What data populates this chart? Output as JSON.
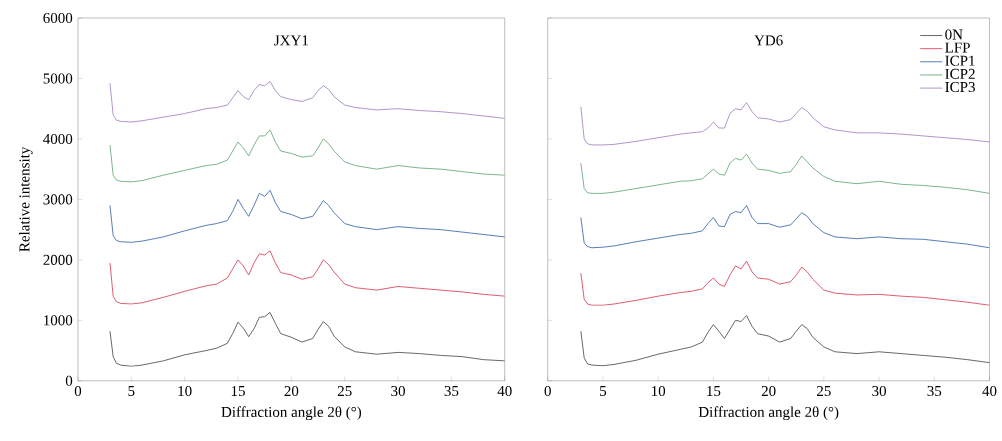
{
  "chart_data": [
    {
      "type": "line",
      "title": "JXY1",
      "xlabel": "Diffraction angle 2θ (°)",
      "ylabel": "Relative intensity",
      "x": [
        3,
        3.3,
        3.6,
        4,
        5,
        6,
        8,
        10,
        12,
        13,
        14,
        14.5,
        15,
        15.5,
        16,
        16.5,
        17,
        17.5,
        18,
        18.5,
        19,
        20,
        21,
        22,
        22.5,
        23,
        23.5,
        24,
        25,
        26,
        28,
        30,
        32,
        34,
        36,
        38,
        40
      ],
      "xlim": [
        0,
        40
      ],
      "xticks": [
        0,
        5,
        10,
        15,
        20,
        25,
        30,
        35,
        40
      ],
      "ylim": [
        0,
        6000
      ],
      "yticks": [
        0,
        1000,
        2000,
        3000,
        4000,
        5000,
        6000
      ],
      "legend": false,
      "series": [
        {
          "color": "#404040",
          "values": [
            820,
            400,
            290,
            260,
            240,
            260,
            330,
            430,
            500,
            540,
            620,
            780,
            970,
            870,
            730,
            860,
            1050,
            1060,
            1130,
            950,
            780,
            720,
            640,
            700,
            850,
            980,
            900,
            740,
            560,
            480,
            440,
            470,
            450,
            420,
            400,
            350,
            330
          ]
        },
        {
          "color": "#d6334a",
          "values": [
            1950,
            1400,
            1310,
            1280,
            1270,
            1290,
            1380,
            1480,
            1570,
            1600,
            1700,
            1850,
            2000,
            1900,
            1750,
            1950,
            2100,
            2080,
            2150,
            1950,
            1790,
            1750,
            1680,
            1720,
            1850,
            2000,
            1920,
            1800,
            1600,
            1540,
            1500,
            1560,
            1530,
            1500,
            1470,
            1430,
            1400
          ]
        },
        {
          "color": "#2e5ca8",
          "values": [
            2900,
            2400,
            2320,
            2300,
            2290,
            2310,
            2380,
            2480,
            2570,
            2600,
            2650,
            2800,
            3000,
            2850,
            2720,
            2900,
            3100,
            3050,
            3150,
            2950,
            2800,
            2750,
            2680,
            2720,
            2850,
            2980,
            2900,
            2780,
            2600,
            2550,
            2500,
            2550,
            2520,
            2500,
            2460,
            2420,
            2380
          ]
        },
        {
          "color": "#5aa36e",
          "values": [
            3900,
            3400,
            3320,
            3300,
            3290,
            3310,
            3400,
            3480,
            3560,
            3580,
            3650,
            3800,
            3950,
            3850,
            3720,
            3900,
            4050,
            4050,
            4150,
            3950,
            3800,
            3760,
            3700,
            3720,
            3850,
            4000,
            3920,
            3800,
            3620,
            3560,
            3500,
            3560,
            3520,
            3500,
            3460,
            3420,
            3400
          ]
        },
        {
          "color": "#9b7bbf",
          "values": [
            4920,
            4400,
            4310,
            4290,
            4280,
            4300,
            4360,
            4420,
            4500,
            4520,
            4560,
            4680,
            4800,
            4700,
            4650,
            4800,
            4900,
            4880,
            4950,
            4800,
            4700,
            4650,
            4620,
            4680,
            4800,
            4880,
            4820,
            4700,
            4560,
            4520,
            4480,
            4500,
            4470,
            4450,
            4420,
            4380,
            4340
          ]
        }
      ]
    },
    {
      "type": "line",
      "title": "YD6",
      "xlabel": "Diffraction angle 2θ (°)",
      "x": [
        3,
        3.3,
        3.6,
        4,
        5,
        6,
        8,
        10,
        12,
        13,
        14,
        14.5,
        15,
        15.5,
        16,
        16.5,
        17,
        17.5,
        18,
        18.5,
        19,
        20,
        21,
        22,
        22.5,
        23,
        23.5,
        24,
        25,
        26,
        28,
        30,
        32,
        34,
        36,
        38,
        40
      ],
      "xlim": [
        0,
        40
      ],
      "xticks": [
        0,
        5,
        10,
        15,
        20,
        25,
        30,
        35,
        40
      ],
      "ylim": [
        0,
        6000
      ],
      "yticks": [
        0,
        1000,
        2000,
        3000,
        4000,
        5000,
        6000
      ],
      "tick_labels": "x",
      "legend": "top right",
      "series": [
        {
          "name": "0N",
          "color": "#404040",
          "values": [
            820,
            380,
            280,
            260,
            250,
            270,
            340,
            440,
            520,
            560,
            640,
            800,
            930,
            820,
            700,
            850,
            1000,
            980,
            1080,
            900,
            780,
            740,
            640,
            700,
            820,
            930,
            860,
            720,
            560,
            480,
            450,
            480,
            450,
            420,
            390,
            350,
            300
          ]
        },
        {
          "name": "LFP",
          "color": "#d6334a",
          "values": [
            1780,
            1350,
            1270,
            1250,
            1250,
            1270,
            1330,
            1400,
            1460,
            1480,
            1520,
            1620,
            1700,
            1600,
            1560,
            1750,
            1900,
            1850,
            1980,
            1800,
            1700,
            1680,
            1600,
            1640,
            1750,
            1880,
            1800,
            1680,
            1500,
            1450,
            1420,
            1430,
            1400,
            1380,
            1340,
            1300,
            1250
          ]
        },
        {
          "name": "ICP1",
          "color": "#2e5ca8",
          "values": [
            2700,
            2280,
            2220,
            2200,
            2210,
            2230,
            2300,
            2360,
            2420,
            2440,
            2480,
            2600,
            2700,
            2560,
            2550,
            2750,
            2800,
            2780,
            2900,
            2700,
            2600,
            2600,
            2540,
            2580,
            2680,
            2780,
            2720,
            2600,
            2450,
            2380,
            2350,
            2380,
            2350,
            2340,
            2300,
            2260,
            2200
          ]
        },
        {
          "name": "ICP2",
          "color": "#5aa36e",
          "values": [
            3600,
            3180,
            3110,
            3100,
            3100,
            3120,
            3180,
            3240,
            3300,
            3310,
            3340,
            3420,
            3500,
            3420,
            3400,
            3600,
            3680,
            3650,
            3750,
            3600,
            3500,
            3480,
            3430,
            3460,
            3580,
            3720,
            3620,
            3520,
            3380,
            3300,
            3260,
            3300,
            3250,
            3230,
            3200,
            3160,
            3100
          ]
        },
        {
          "name": "ICP3",
          "color": "#9b7bbf",
          "values": [
            4530,
            4000,
            3920,
            3900,
            3900,
            3910,
            3960,
            4020,
            4080,
            4100,
            4120,
            4180,
            4280,
            4180,
            4180,
            4420,
            4500,
            4480,
            4600,
            4450,
            4350,
            4330,
            4280,
            4320,
            4420,
            4520,
            4460,
            4350,
            4200,
            4150,
            4100,
            4100,
            4080,
            4050,
            4020,
            3990,
            3950
          ]
        }
      ]
    }
  ]
}
